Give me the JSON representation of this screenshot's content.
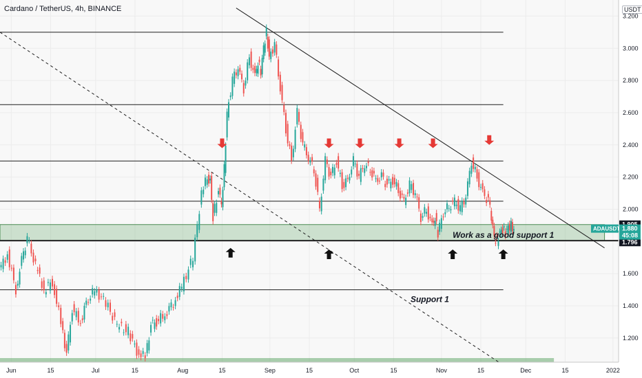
{
  "header": {
    "title": "Cardano / TetherUS, 4h, BINANCE",
    "currency": "USDT"
  },
  "chart_data": {
    "type": "line",
    "title": "Cardano / TetherUS, 4h, BINANCE",
    "xlabel": "",
    "ylabel": "",
    "ylim": [
      1.05,
      3.3
    ],
    "y_ticks": [
      "3.200",
      "3.000",
      "2.800",
      "2.600",
      "2.400",
      "2.200",
      "2.000",
      "1.800",
      "1.600",
      "1.400",
      "1.200"
    ],
    "y_tick_values": [
      3.2,
      3.0,
      2.8,
      2.6,
      2.4,
      2.2,
      2.0,
      1.8,
      1.6,
      1.4,
      1.2
    ],
    "x_ticks": [
      "Jun",
      "15",
      "Jul",
      "15",
      "Aug",
      "15",
      "Sep",
      "15",
      "Oct",
      "15",
      "Nov",
      "15",
      "Dec",
      "15",
      "2022"
    ],
    "x_tick_days": [
      0,
      14,
      30,
      44,
      61,
      75,
      92,
      106,
      122,
      136,
      153,
      167,
      183,
      197,
      214
    ],
    "xlim_days": [
      -4,
      216
    ],
    "grid": true,
    "series": [
      {
        "name": "ADAUSDT",
        "x_days": [
          -4,
          -1,
          2,
          4,
          6,
          9,
          12,
          15,
          18,
          20,
          22,
          25,
          27,
          30,
          34,
          38,
          42,
          45,
          48,
          50,
          52,
          55,
          58,
          61,
          65,
          68,
          70,
          71,
          72,
          74,
          75,
          76,
          77,
          79,
          81,
          83,
          85,
          87,
          88,
          89,
          90,
          91,
          92,
          94,
          96,
          98,
          100,
          102,
          104,
          106,
          108,
          110,
          112,
          114,
          116,
          118,
          120,
          122,
          124,
          126,
          128,
          130,
          132,
          134,
          136,
          138,
          140,
          142,
          144,
          146,
          148,
          150,
          151,
          152,
          154,
          156,
          158,
          160,
          162,
          164,
          166,
          168,
          170,
          171,
          172,
          173,
          174,
          175,
          176,
          177,
          178,
          179
        ],
        "values": [
          1.62,
          1.72,
          1.5,
          1.68,
          1.82,
          1.65,
          1.5,
          1.55,
          1.3,
          1.1,
          1.38,
          1.3,
          1.42,
          1.5,
          1.42,
          1.28,
          1.24,
          1.12,
          1.08,
          1.28,
          1.3,
          1.35,
          1.42,
          1.52,
          1.7,
          2.1,
          2.2,
          2.18,
          1.95,
          2.12,
          2.02,
          2.25,
          2.6,
          2.8,
          2.88,
          2.75,
          2.95,
          2.82,
          2.92,
          2.85,
          3.0,
          3.1,
          2.95,
          3.02,
          2.75,
          2.5,
          2.3,
          2.6,
          2.4,
          2.32,
          2.25,
          2.0,
          2.3,
          2.2,
          2.3,
          2.15,
          2.18,
          2.3,
          2.2,
          2.28,
          2.25,
          2.18,
          2.2,
          2.15,
          2.18,
          2.12,
          2.05,
          2.15,
          2.1,
          1.95,
          2.0,
          1.9,
          1.95,
          1.85,
          1.98,
          2.02,
          2.05,
          2.0,
          2.08,
          2.3,
          2.2,
          2.1,
          2.05,
          1.95,
          1.82,
          1.8,
          1.86,
          1.88,
          1.85,
          1.88,
          1.9,
          1.88
        ]
      }
    ],
    "horizontal_levels": [
      3.1,
      2.65,
      2.3,
      2.05,
      1.5
    ],
    "support_zone": [
      1.805,
      1.905
    ],
    "trend_lines": [
      {
        "style": "solid",
        "from": {
          "day": 80,
          "price": 3.25
        },
        "to": {
          "day": 211,
          "price": 1.76
        }
      },
      {
        "style": "dashed",
        "from": {
          "day": -4,
          "price": 3.1
        },
        "to": {
          "day": 176,
          "price": 1.02
        }
      }
    ],
    "arrows_down": [
      {
        "day": 75,
        "price": 2.38
      },
      {
        "day": 113,
        "price": 2.38
      },
      {
        "day": 124,
        "price": 2.38
      },
      {
        "day": 138,
        "price": 2.38
      },
      {
        "day": 150,
        "price": 2.38
      },
      {
        "day": 170,
        "price": 2.4
      }
    ],
    "arrows_up": [
      {
        "day": 78,
        "price": 1.76
      },
      {
        "day": 113,
        "price": 1.75
      },
      {
        "day": 157,
        "price": 1.75
      },
      {
        "day": 175,
        "price": 1.75
      }
    ],
    "annotations": [
      {
        "text": "Work as a good support 1",
        "day": 157,
        "price": 1.84
      },
      {
        "text": "Support 1",
        "day": 142,
        "price": 1.44
      }
    ],
    "price_labels": {
      "top": "1.905",
      "current_symbol": "ADAUSDT",
      "current_price": "1.880",
      "countdown": "45:08",
      "bottom": "1.796"
    }
  }
}
